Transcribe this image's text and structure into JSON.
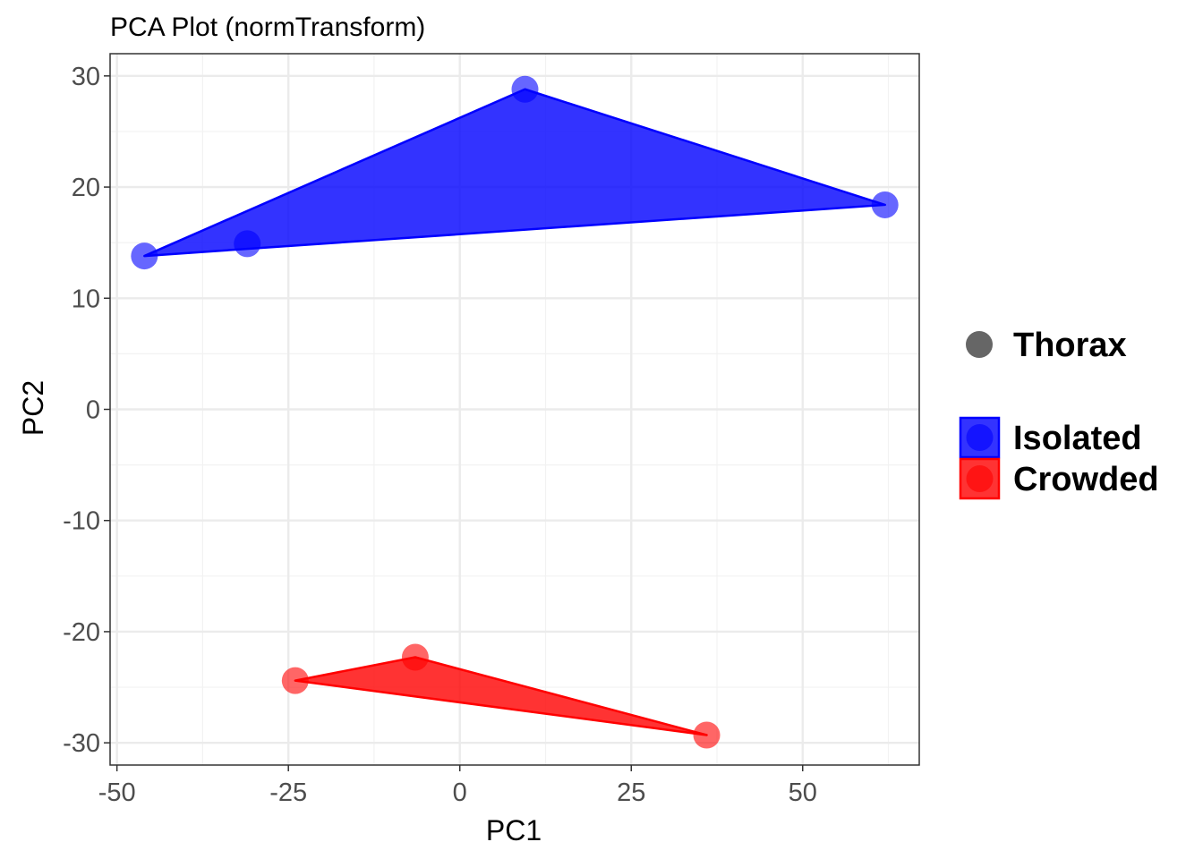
{
  "chart_data": {
    "type": "scatter",
    "title": "PCA Plot (normTransform)",
    "xlabel": "PC1",
    "ylabel": "PC2",
    "xlim": [
      -51,
      67
    ],
    "ylim": [
      -32,
      32
    ],
    "x_ticks": [
      -50,
      -25,
      0,
      25,
      50
    ],
    "y_ticks": [
      30,
      20,
      10,
      0,
      -10,
      -20,
      -30
    ],
    "x_tick_labels": [
      "-50",
      "-25",
      "0",
      "25",
      "50"
    ],
    "y_tick_labels": [
      "30",
      "20",
      "10",
      "0",
      "-10",
      "-20",
      "-30"
    ],
    "grid": true,
    "legend_position": "right",
    "shape_legend": [
      {
        "label": "Thorax",
        "color": "#666666"
      }
    ],
    "series": [
      {
        "name": "Isolated",
        "color": "#0000ff",
        "points": [
          {
            "x": -46,
            "y": 13.8
          },
          {
            "x": -31,
            "y": 14.9
          },
          {
            "x": 9.5,
            "y": 28.8
          },
          {
            "x": 62,
            "y": 18.4
          }
        ],
        "hull": [
          [
            -46,
            13.8
          ],
          [
            9.5,
            28.8
          ],
          [
            62,
            18.4
          ]
        ]
      },
      {
        "name": "Crowded",
        "color": "#ff0000",
        "points": [
          {
            "x": -24,
            "y": -24.4
          },
          {
            "x": -6.5,
            "y": -22.3
          },
          {
            "x": 36,
            "y": -29.3
          }
        ],
        "hull": [
          [
            -24,
            -24.4
          ],
          [
            -6.5,
            -22.3
          ],
          [
            36,
            -29.3
          ]
        ]
      }
    ]
  }
}
